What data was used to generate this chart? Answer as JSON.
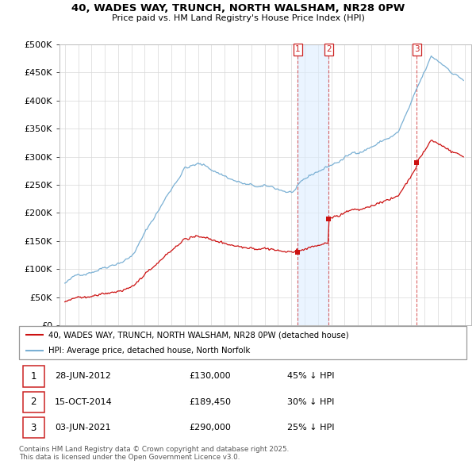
{
  "title": "40, WADES WAY, TRUNCH, NORTH WALSHAM, NR28 0PW",
  "subtitle": "Price paid vs. HM Land Registry's House Price Index (HPI)",
  "hpi_color": "#7ab0d4",
  "sale_color": "#cc1111",
  "legend_label_red": "40, WADES WAY, TRUNCH, NORTH WALSHAM, NR28 0PW (detached house)",
  "legend_label_blue": "HPI: Average price, detached house, North Norfolk",
  "transactions": [
    {
      "num": 1,
      "date": "28-JUN-2012",
      "price": 130000,
      "pct": "45%",
      "date_val": 2012.49
    },
    {
      "num": 2,
      "date": "15-OCT-2014",
      "price": 189450,
      "pct": "30%",
      "date_val": 2014.79
    },
    {
      "num": 3,
      "date": "03-JUN-2021",
      "price": 290000,
      "pct": "25%",
      "date_val": 2021.42
    }
  ],
  "shade_between": [
    2012.49,
    2014.79
  ],
  "footnote": "Contains HM Land Registry data © Crown copyright and database right 2025.\nThis data is licensed under the Open Government Licence v3.0."
}
